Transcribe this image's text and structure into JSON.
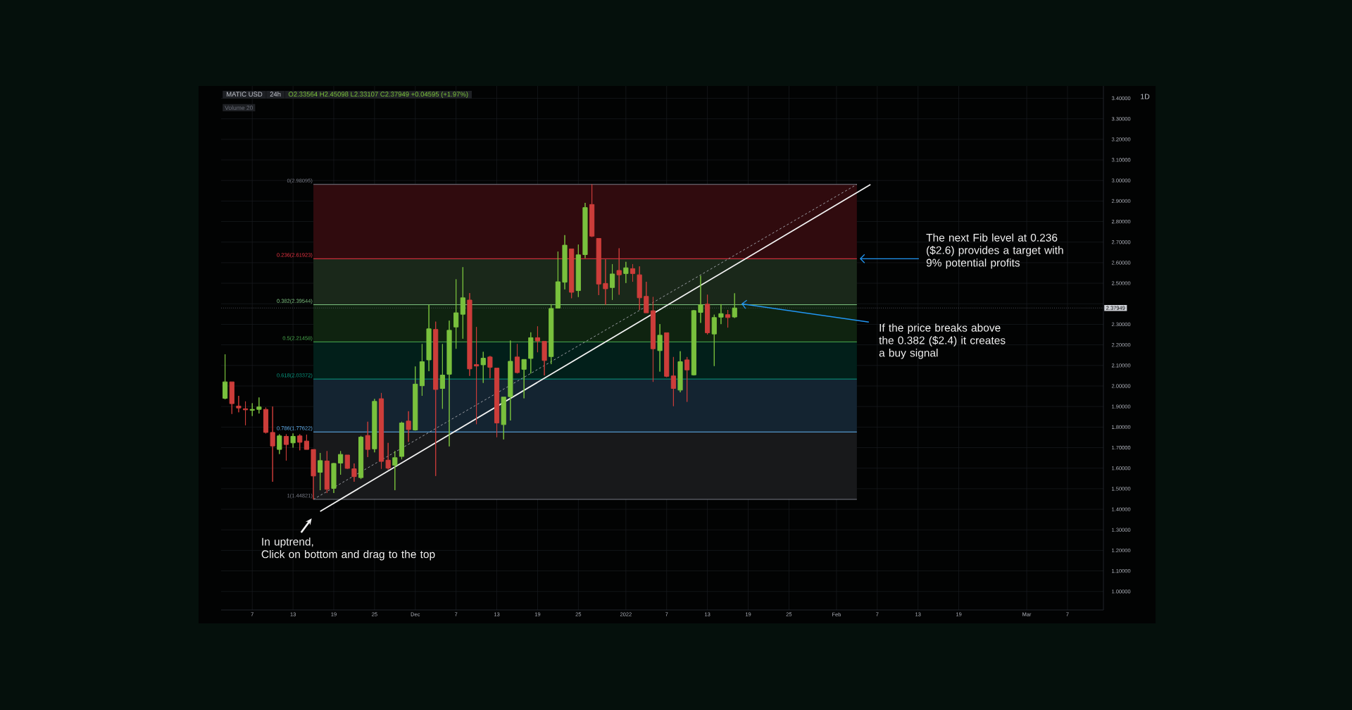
{
  "chart_data": {
    "type": "candlestick",
    "title": "MATIC USD",
    "subtitle": "24h",
    "x": [
      "2021-11-03",
      "2021-11-04",
      "2021-11-05",
      "2021-11-06",
      "2021-11-07",
      "2021-11-08",
      "2021-11-09",
      "2021-11-10",
      "2021-11-11",
      "2021-11-12",
      "2021-11-13",
      "2021-11-14",
      "2021-11-15",
      "2021-11-16",
      "2021-11-17",
      "2021-11-18",
      "2021-11-19",
      "2021-11-20",
      "2021-11-21",
      "2021-11-22",
      "2021-11-23",
      "2021-11-24",
      "2021-11-25",
      "2021-11-26",
      "2021-11-27",
      "2021-11-28",
      "2021-11-29",
      "2021-11-30",
      "2021-12-01",
      "2021-12-02",
      "2021-12-03",
      "2021-12-04",
      "2021-12-05",
      "2021-12-06",
      "2021-12-07",
      "2021-12-08",
      "2021-12-09",
      "2021-12-10",
      "2021-12-11",
      "2021-12-12",
      "2021-12-13",
      "2021-12-14",
      "2021-12-15",
      "2021-12-16",
      "2021-12-17",
      "2021-12-18",
      "2021-12-19",
      "2021-12-20",
      "2021-12-21",
      "2021-12-22",
      "2021-12-23",
      "2021-12-24",
      "2021-12-25",
      "2021-12-26",
      "2021-12-27",
      "2021-12-28",
      "2021-12-29",
      "2021-12-30",
      "2021-12-31",
      "2022-01-01",
      "2022-01-02",
      "2022-01-03",
      "2022-01-04",
      "2022-01-05",
      "2022-01-06",
      "2022-01-07",
      "2022-01-08",
      "2022-01-09",
      "2022-01-10",
      "2022-01-11",
      "2022-01-12",
      "2022-01-13",
      "2022-01-14",
      "2022-01-15",
      "2022-01-16",
      "2022-01-17"
    ],
    "ohlc": [
      [
        1.94,
        2.154,
        1.935,
        2.02
      ],
      [
        2.02,
        2.02,
        1.864,
        1.914
      ],
      [
        1.902,
        1.952,
        1.872,
        1.893
      ],
      [
        1.889,
        1.925,
        1.809,
        1.884
      ],
      [
        1.882,
        1.916,
        1.854,
        1.886
      ],
      [
        1.886,
        1.944,
        1.866,
        1.898
      ],
      [
        1.886,
        1.895,
        1.769,
        1.774
      ],
      [
        1.774,
        1.9,
        1.534,
        1.708
      ],
      [
        1.691,
        1.765,
        1.669,
        1.757
      ],
      [
        1.755,
        1.765,
        1.637,
        1.715
      ],
      [
        1.723,
        1.769,
        1.7,
        1.755
      ],
      [
        1.757,
        1.765,
        1.687,
        1.726
      ],
      [
        1.732,
        1.763,
        1.691,
        1.691
      ],
      [
        1.691,
        1.691,
        1.44821,
        1.562
      ],
      [
        1.58,
        1.674,
        1.493,
        1.637
      ],
      [
        1.635,
        1.683,
        1.479,
        1.497
      ],
      [
        1.502,
        1.625,
        1.479,
        1.623
      ],
      [
        1.625,
        1.683,
        1.568,
        1.667
      ],
      [
        1.664,
        1.664,
        1.597,
        1.599
      ],
      [
        1.597,
        1.623,
        1.534,
        1.559
      ],
      [
        1.554,
        1.757,
        1.547,
        1.751
      ],
      [
        1.759,
        1.826,
        1.654,
        1.691
      ],
      [
        1.694,
        1.937,
        1.677,
        1.925
      ],
      [
        1.938,
        1.966,
        1.597,
        1.633
      ],
      [
        1.639,
        1.723,
        1.593,
        1.6
      ],
      [
        1.614,
        1.683,
        1.493,
        1.651
      ],
      [
        1.657,
        1.826,
        1.643,
        1.82
      ],
      [
        1.829,
        1.877,
        1.728,
        1.788
      ],
      [
        1.786,
        2.095,
        1.783,
        2.009
      ],
      [
        2.001,
        2.204,
        1.952,
        2.118
      ],
      [
        2.127,
        2.395,
        2.072,
        2.278
      ],
      [
        2.275,
        2.313,
        1.562,
        1.983
      ],
      [
        1.988,
        2.204,
        1.889,
        2.053
      ],
      [
        2.057,
        2.318,
        1.706,
        2.271
      ],
      [
        2.287,
        2.519,
        2.181,
        2.356
      ],
      [
        2.349,
        2.578,
        2.23,
        2.429
      ],
      [
        2.418,
        2.452,
        2.049,
        2.083
      ],
      [
        2.104,
        2.287,
        1.814,
        2.097
      ],
      [
        2.103,
        2.166,
        2.015,
        2.135
      ],
      [
        2.141,
        2.146,
        2.038,
        2.091
      ],
      [
        2.087,
        2.087,
        1.751,
        1.82
      ],
      [
        1.812,
        1.946,
        1.74,
        1.946
      ],
      [
        1.948,
        2.221,
        1.832,
        2.12
      ],
      [
        2.141,
        2.204,
        2.061,
        2.065
      ],
      [
        2.081,
        2.129,
        1.94,
        2.129
      ],
      [
        2.134,
        2.261,
        2.061,
        2.235
      ],
      [
        2.235,
        2.29,
        2.164,
        2.219
      ],
      [
        2.217,
        2.217,
        2.051,
        2.124
      ],
      [
        2.143,
        2.398,
        2.106,
        2.377
      ],
      [
        2.379,
        2.654,
        2.379,
        2.507
      ],
      [
        2.505,
        2.734,
        2.47,
        2.685
      ],
      [
        2.667,
        2.667,
        2.427,
        2.456
      ],
      [
        2.464,
        2.688,
        2.433,
        2.638
      ],
      [
        2.639,
        2.891,
        2.622,
        2.868
      ],
      [
        2.883,
        2.98095,
        2.725,
        2.729
      ],
      [
        2.718,
        2.718,
        2.442,
        2.496
      ],
      [
        2.499,
        2.616,
        2.395,
        2.473
      ],
      [
        2.479,
        2.593,
        2.419,
        2.545
      ],
      [
        2.562,
        2.67,
        2.444,
        2.541
      ],
      [
        2.547,
        2.604,
        2.501,
        2.575
      ],
      [
        2.571,
        2.593,
        2.507,
        2.547
      ],
      [
        2.541,
        2.582,
        2.37,
        2.429
      ],
      [
        2.436,
        2.507,
        2.356,
        2.356
      ],
      [
        2.366,
        2.433,
        2.02,
        2.181
      ],
      [
        2.172,
        2.301,
        2.07,
        2.247
      ],
      [
        2.259,
        2.259,
        2.043,
        2.047
      ],
      [
        2.049,
        2.141,
        1.902,
        1.988
      ],
      [
        1.98,
        2.169,
        1.969,
        2.118
      ],
      [
        2.127,
        2.141,
        1.923,
        2.078
      ],
      [
        2.054,
        2.37,
        2.051,
        2.367
      ],
      [
        2.358,
        2.536,
        2.307,
        2.395
      ],
      [
        2.398,
        2.444,
        2.25,
        2.259
      ],
      [
        2.253,
        2.347,
        2.097,
        2.333
      ],
      [
        2.335,
        2.398,
        2.301,
        2.352
      ],
      [
        2.347,
        2.37,
        2.284,
        2.333
      ],
      [
        2.33564,
        2.45098,
        2.33107,
        2.37949
      ]
    ],
    "colors": [
      "#79c13d",
      "#cc3d3a",
      "#cc3d3a",
      "#cc3d3a",
      "#79c13d",
      "#79c13d",
      "#cc3d3a",
      "#cc3d3a",
      "#79c13d",
      "#cc3d3a",
      "#79c13d",
      "#cc3d3a",
      "#cc3d3a",
      "#cc3d3a",
      "#79c13d",
      "#cc3d3a",
      "#79c13d",
      "#79c13d",
      "#cc3d3a",
      "#cc3d3a",
      "#79c13d",
      "#cc3d3a",
      "#79c13d",
      "#cc3d3a",
      "#cc3d3a",
      "#79c13d",
      "#79c13d",
      "#cc3d3a",
      "#79c13d",
      "#79c13d",
      "#79c13d",
      "#cc3d3a",
      "#79c13d",
      "#79c13d",
      "#79c13d",
      "#79c13d",
      "#cc3d3a",
      "#cc3d3a",
      "#79c13d",
      "#cc3d3a",
      "#cc3d3a",
      "#79c13d",
      "#79c13d",
      "#cc3d3a",
      "#79c13d",
      "#79c13d",
      "#cc3d3a",
      "#cc3d3a",
      "#79c13d",
      "#79c13d",
      "#79c13d",
      "#cc3d3a",
      "#79c13d",
      "#79c13d",
      "#cc3d3a",
      "#cc3d3a",
      "#cc3d3a",
      "#79c13d",
      "#cc3d3a",
      "#79c13d",
      "#cc3d3a",
      "#cc3d3a",
      "#cc3d3a",
      "#cc3d3a",
      "#79c13d",
      "#cc3d3a",
      "#cc3d3a",
      "#79c13d",
      "#cc3d3a",
      "#79c13d",
      "#79c13d",
      "#cc3d3a",
      "#79c13d",
      "#79c13d",
      "#cc3d3a",
      "#79c13d"
    ],
    "series": [
      {
        "type": "line",
        "name": "0(2.98095)",
        "color": "#787b86",
        "x": [
          "2021-11-16",
          "2022-02-04"
        ],
        "values": [
          2.98095,
          2.98095
        ]
      },
      {
        "type": "line",
        "name": "0.236(2.61923)",
        "color": "#f23645",
        "x": [
          "2021-11-16",
          "2022-02-04"
        ],
        "values": [
          2.61923,
          2.61923
        ],
        "lower": [
          2.61923,
          2.61923
        ],
        "upper": [
          2.98095,
          2.98095
        ]
      },
      {
        "type": "line",
        "name": "0.382(2.39544)",
        "color": "#81c784",
        "x": [
          "2021-11-16",
          "2022-02-04"
        ],
        "values": [
          2.39544,
          2.39544
        ],
        "lower": [
          2.39544,
          2.39544
        ],
        "upper": [
          2.61923,
          2.61923
        ]
      },
      {
        "type": "line",
        "name": "0.5(2.21458)",
        "color": "#4caf50",
        "x": [
          "2021-11-16",
          "2022-02-04"
        ],
        "values": [
          2.21458,
          2.21458
        ],
        "lower": [
          2.21458,
          2.21458
        ],
        "upper": [
          2.39544,
          2.39544
        ]
      },
      {
        "type": "line",
        "name": "0.618(2.03372)",
        "color": "#089981",
        "x": [
          "2021-11-16",
          "2022-02-04"
        ],
        "values": [
          2.03372,
          2.03372
        ],
        "lower": [
          2.03372,
          2.03372
        ],
        "upper": [
          2.21458,
          2.21458
        ]
      },
      {
        "type": "line",
        "name": "0.786(1.77622)",
        "color": "#64b5f6",
        "x": [
          "2021-11-16",
          "2022-02-04"
        ],
        "values": [
          1.77622,
          1.77622
        ],
        "lower": [
          1.77622,
          1.77622
        ],
        "upper": [
          2.03372,
          2.03372
        ]
      },
      {
        "type": "line",
        "name": "1(1.44821)",
        "color": "#787b86",
        "x": [
          "2021-11-16",
          "2022-02-04"
        ],
        "values": [
          1.44821,
          1.44821
        ],
        "lower": [
          1.44821,
          1.44821
        ],
        "upper": [
          1.77622,
          1.77622
        ]
      },
      {
        "type": "line",
        "color": "#9a9ca3",
        "line_style": "dashed",
        "x": [
          "2021-11-16",
          "2022-02-04"
        ],
        "values": [
          1.44821,
          2.98095
        ]
      },
      {
        "type": "line",
        "color": "#f2f2f2",
        "line_style": "solid",
        "x": [
          "2021-11-17",
          "2022-02-06"
        ],
        "values": [
          1.39,
          2.98
        ]
      }
    ],
    "ref_lines": [
      {
        "axis": "y",
        "value": 2.37949,
        "label": "2.37949",
        "color": "#5d606b",
        "line_style": "dotted"
      }
    ],
    "annotations": [
      {
        "text": "In uptrend,\nClick on bottom and drag to the top",
        "x": "2021-11-17",
        "y": 1.39
      },
      {
        "text": "The next Fib level at 0.236\n($2.6)   provides a target with\n9% potential profits",
        "x": "2022-02-04",
        "y": 2.61923
      },
      {
        "text": "If the price breaks above\nthe 0.382 ($2.4) it creates\na buy signal",
        "x": "2022-01-18",
        "y": 2.4
      },
      "O2.33564 H2.45098 L2.33107 C2.37949 +0.04595 (+1.97%)",
      "Volume 20",
      "1D"
    ],
    "xlim": [
      "2021-11-02T10:00",
      "2022-03-12T07:00"
    ],
    "ylim": [
      0.91,
      3.46
    ],
    "xticks": [
      {
        "value": "2021-11-07",
        "label": "7"
      },
      {
        "value": "2021-11-13",
        "label": "13"
      },
      {
        "value": "2021-11-19",
        "label": "19"
      },
      {
        "value": "2021-11-25",
        "label": "25"
      },
      {
        "value": "2021-12-01",
        "label": "Dec"
      },
      {
        "value": "2021-12-07",
        "label": "7"
      },
      {
        "value": "2021-12-13",
        "label": "13"
      },
      {
        "value": "2021-12-19",
        "label": "19"
      },
      {
        "value": "2021-12-25",
        "label": "25"
      },
      {
        "value": "2022-01-01",
        "label": "2022"
      },
      {
        "value": "2022-01-07",
        "label": "7"
      },
      {
        "value": "2022-01-13",
        "label": "13"
      },
      {
        "value": "2022-01-19",
        "label": "19"
      },
      {
        "value": "2022-01-25",
        "label": "25"
      },
      {
        "value": "2022-02-01",
        "label": "Feb"
      },
      {
        "value": "2022-02-07",
        "label": "7"
      },
      {
        "value": "2022-02-13",
        "label": "13"
      },
      {
        "value": "2022-02-19",
        "label": "19"
      },
      {
        "value": "2022-03-01",
        "label": "Mar"
      },
      {
        "value": "2022-03-07",
        "label": "7"
      }
    ],
    "yticks": [
      {
        "value": 1.0,
        "label": "1.00000"
      },
      {
        "value": 1.1,
        "label": "1.10000"
      },
      {
        "value": 1.2,
        "label": "1.20000"
      },
      {
        "value": 1.3,
        "label": "1.30000"
      },
      {
        "value": 1.4,
        "label": "1.40000"
      },
      {
        "value": 1.5,
        "label": "1.50000"
      },
      {
        "value": 1.6,
        "label": "1.60000"
      },
      {
        "value": 1.7,
        "label": "1.70000"
      },
      {
        "value": 1.8,
        "label": "1.80000"
      },
      {
        "value": 1.9,
        "label": "1.90000"
      },
      {
        "value": 2.0,
        "label": "2.00000"
      },
      {
        "value": 2.1,
        "label": "2.10000"
      },
      {
        "value": 2.2,
        "label": "2.20000"
      },
      {
        "value": 2.3,
        "label": "2.30000"
      },
      {
        "value": 2.4,
        "label": null
      },
      {
        "value": 2.5,
        "label": "2.50000"
      },
      {
        "value": 2.6,
        "label": "2.60000"
      },
      {
        "value": 2.7,
        "label": "2.70000"
      },
      {
        "value": 2.8,
        "label": "2.80000"
      },
      {
        "value": 2.9,
        "label": "2.90000"
      },
      {
        "value": 3.0,
        "label": "3.00000"
      },
      {
        "value": 3.1,
        "label": "3.10000"
      },
      {
        "value": 3.2,
        "label": "3.20000"
      },
      {
        "value": 3.3,
        "label": "3.30000"
      },
      {
        "value": 3.4,
        "label": "3.40000"
      }
    ],
    "grid": true
  }
}
